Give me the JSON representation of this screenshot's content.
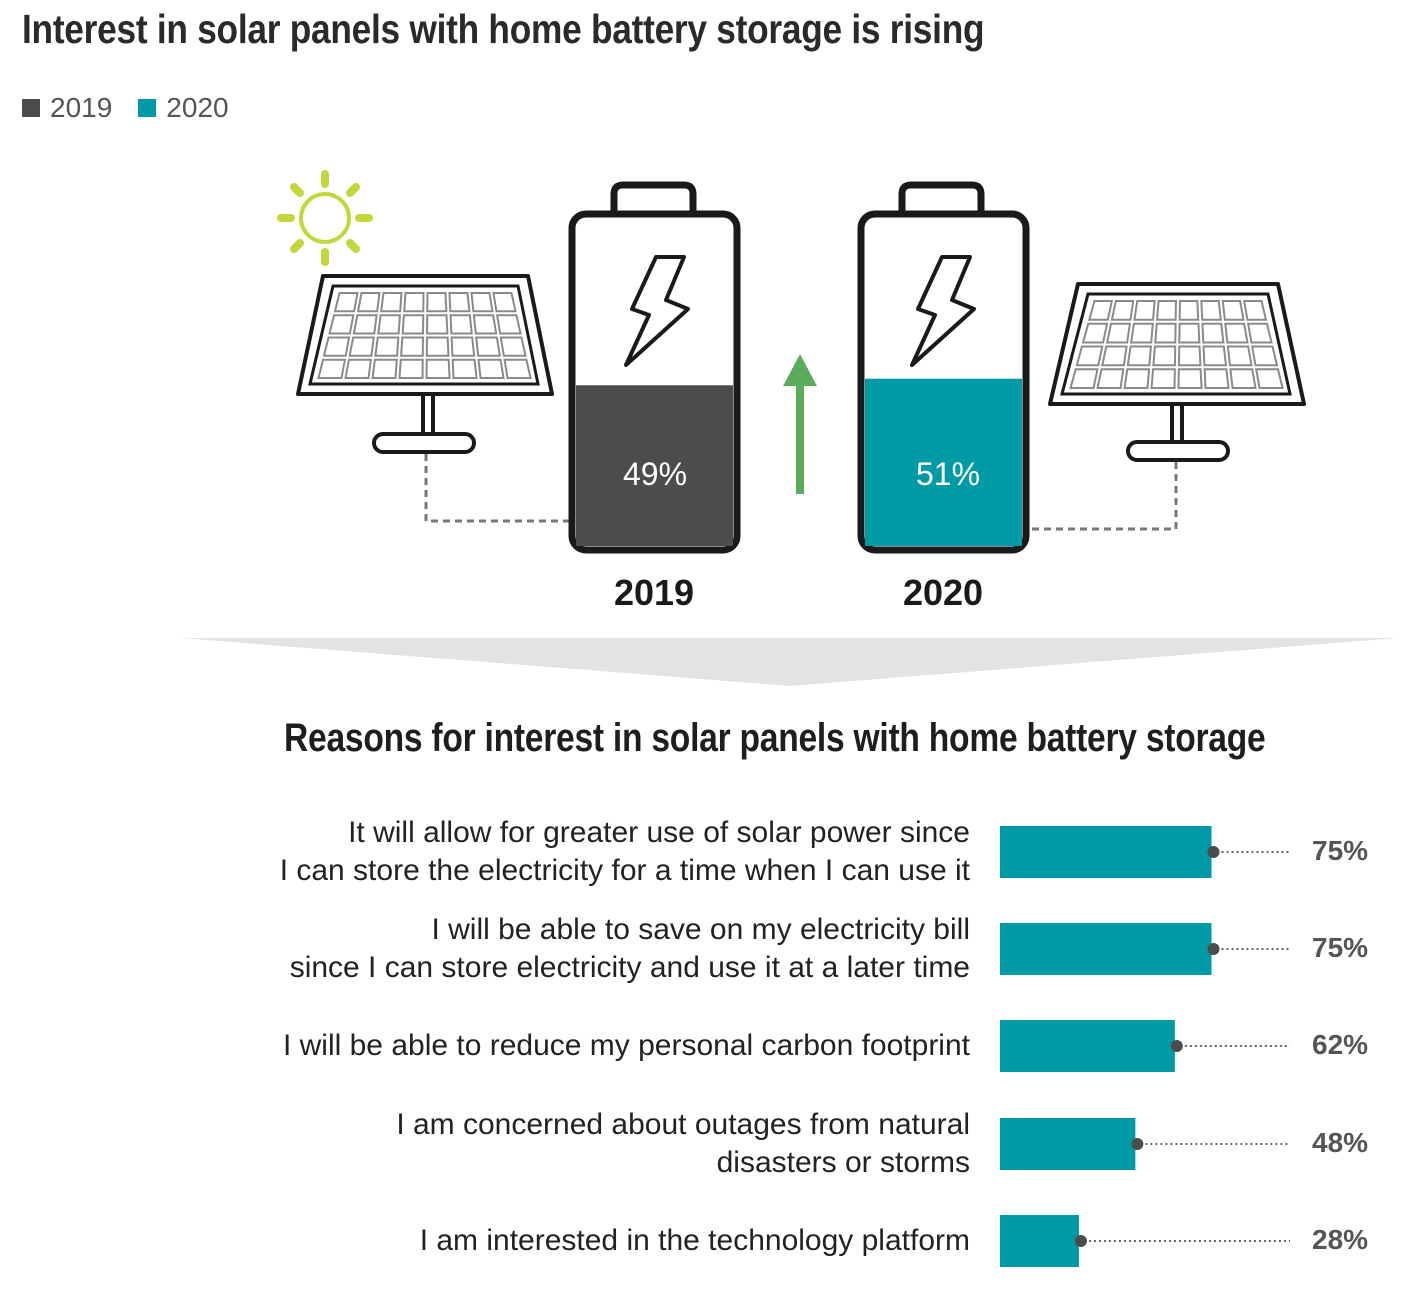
{
  "title": "Interest in solar panels with home battery storage is rising",
  "legend": [
    {
      "label": "2019",
      "color": "#4b4d4c"
    },
    {
      "label": "2020",
      "color": "#009aa6"
    }
  ],
  "colors": {
    "dark": "#4b4d4c",
    "teal": "#009aa6",
    "arrow": "#5aab5a",
    "sun": "#c3d73b"
  },
  "icons": [
    "sun-icon",
    "solar-panel-icon",
    "battery-icon",
    "lightning-icon",
    "up-arrow-icon"
  ],
  "batteries": [
    {
      "year": "2019",
      "value_label": "49%",
      "value": 49,
      "fill_level": 0.49,
      "color": "#4b4d4c"
    },
    {
      "year": "2020",
      "value_label": "51%",
      "value": 51,
      "fill_level": 0.51,
      "color": "#009aa6"
    }
  ],
  "subtitle": "Reasons for interest in solar panels with home battery storage",
  "chart_data": [
    {
      "type": "pie",
      "categories": [
        "2019",
        "2020"
      ],
      "values": [
        49,
        51
      ],
      "title": "Interest in solar panels with home battery storage is rising"
    },
    {
      "type": "bar",
      "orientation": "horizontal",
      "title": "Reasons for interest in solar panels with home battery storage",
      "categories": [
        [
          "It will allow for greater use of solar power since",
          "I can store the electricity for a time when I can use it"
        ],
        [
          "I will be able to save on my electricity bill",
          "since I can store electricity and use it at a later time"
        ],
        [
          "I will be able to reduce my personal carbon footprint"
        ],
        [
          "I am concerned about outages from natural",
          "disasters or storms"
        ],
        [
          "I am interested in the technology platform"
        ]
      ],
      "values": [
        75,
        75,
        62,
        48,
        28
      ],
      "value_labels": [
        "75%",
        "75%",
        "62%",
        "48%",
        "28%"
      ],
      "xlim": [
        0,
        100
      ]
    }
  ]
}
